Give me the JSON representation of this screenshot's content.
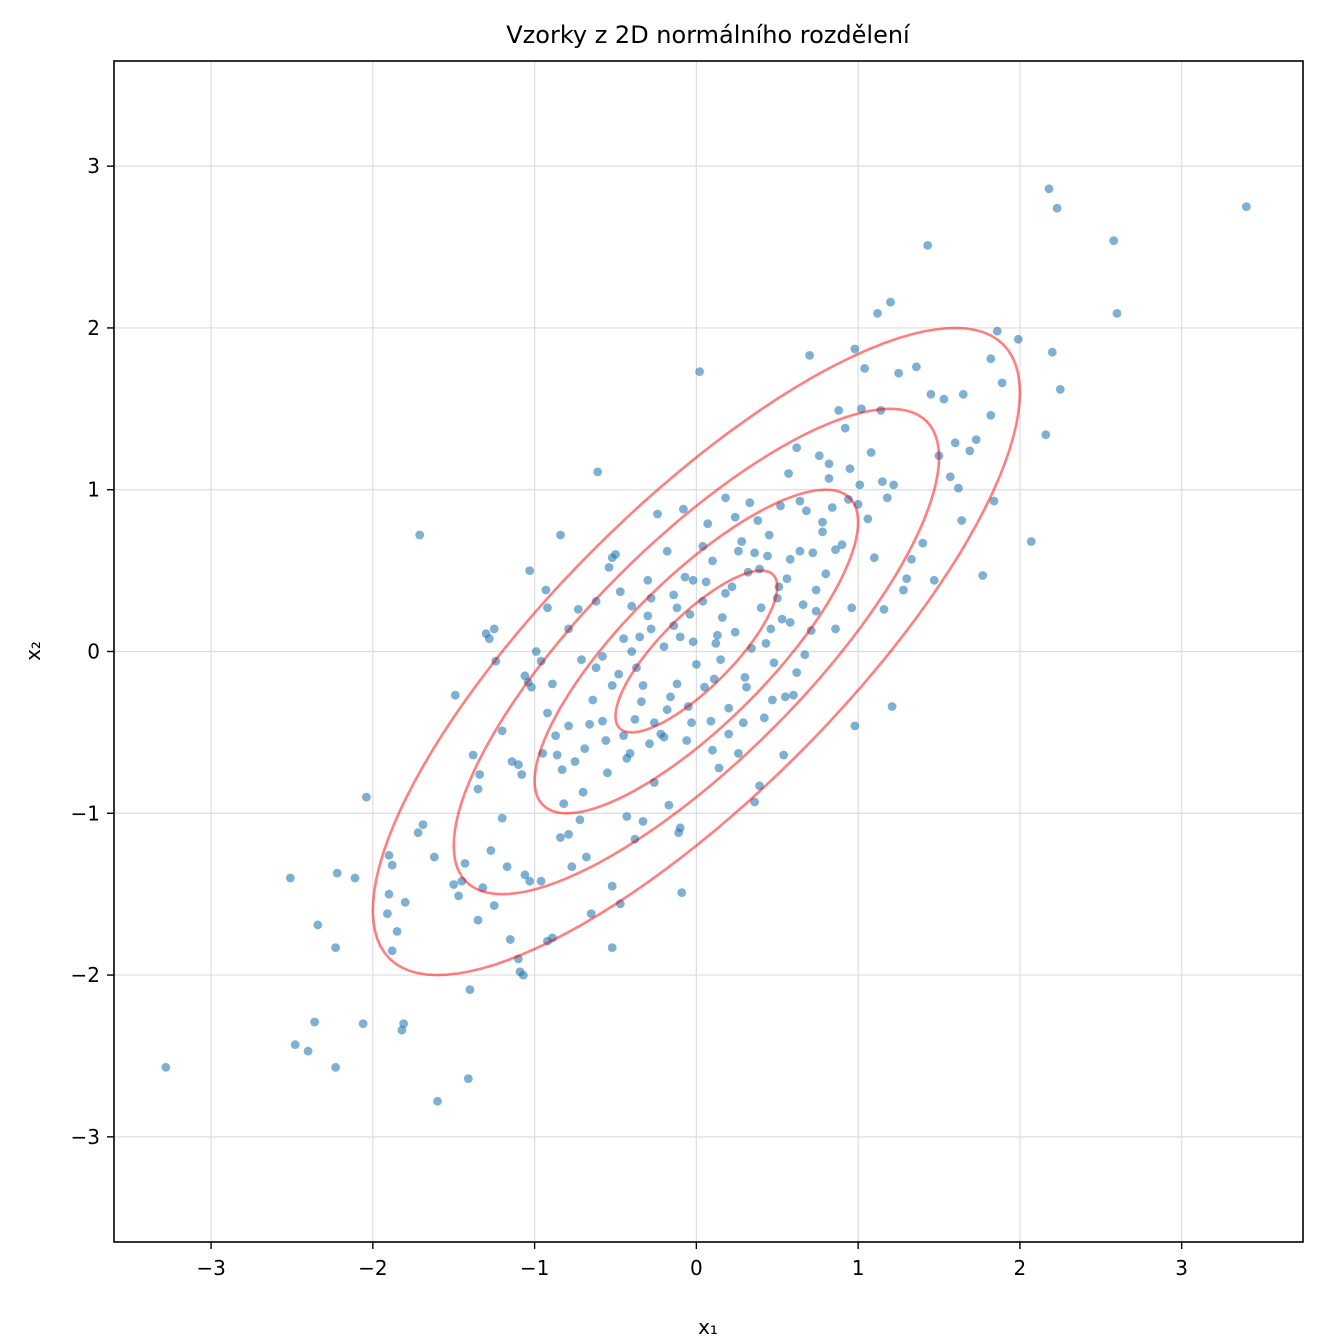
{
  "chart_data": {
    "type": "scatter",
    "title": "Vzorky z 2D normálního rozdělení",
    "xlabel": "x₁",
    "ylabel": "x₂",
    "xlim": [
      -3.6,
      3.75
    ],
    "ylim": [
      -3.65,
      3.65
    ],
    "grid": true,
    "xticks": [
      -3,
      -2,
      -1,
      0,
      1,
      2,
      3
    ],
    "yticks": [
      -3,
      -2,
      -1,
      0,
      1,
      2,
      3
    ],
    "xtick_labels": [
      "−3",
      "−2",
      "−1",
      "0",
      "1",
      "2",
      "3"
    ],
    "ytick_labels": [
      "−3",
      "−2",
      "−1",
      "0",
      "1",
      "2",
      "3"
    ],
    "colors": {
      "points": "#1f77b4",
      "contours": "#ff0000",
      "grid": "#dddddd"
    },
    "contours": {
      "mean": [
        0,
        0
      ],
      "covariance": [
        [
          1.0,
          0.8
        ],
        [
          0.8,
          1.0
        ]
      ],
      "levels_sigma": [
        0.5,
        1.0,
        1.5,
        2.0
      ]
    },
    "points": [
      [
        -3.28,
        -2.57
      ],
      [
        -2.48,
        -2.43
      ],
      [
        -2.4,
        -2.47
      ],
      [
        -2.36,
        -2.29
      ],
      [
        -2.23,
        -2.57
      ],
      [
        -2.06,
        -2.3
      ],
      [
        -1.82,
        -2.34
      ],
      [
        -1.81,
        -2.3
      ],
      [
        -1.6,
        -2.78
      ],
      [
        -1.41,
        -2.64
      ],
      [
        -2.51,
        -1.4
      ],
      [
        -2.34,
        -1.69
      ],
      [
        -2.23,
        -1.83
      ],
      [
        -2.22,
        -1.37
      ],
      [
        -2.11,
        -1.4
      ],
      [
        -1.9,
        -1.26
      ],
      [
        -1.9,
        -1.5
      ],
      [
        -1.88,
        -1.85
      ],
      [
        -1.91,
        -1.62
      ],
      [
        -1.88,
        -1.32
      ],
      [
        -1.85,
        -1.73
      ],
      [
        -1.8,
        -1.55
      ],
      [
        -1.72,
        -1.12
      ],
      [
        -1.69,
        -1.07
      ],
      [
        -1.62,
        -1.27
      ],
      [
        -1.5,
        -1.44
      ],
      [
        -1.47,
        -1.51
      ],
      [
        -1.45,
        -1.42
      ],
      [
        -1.43,
        -1.31
      ],
      [
        -1.4,
        -2.09
      ],
      [
        -1.35,
        -1.66
      ],
      [
        -1.32,
        -1.46
      ],
      [
        -1.27,
        -1.23
      ],
      [
        -1.25,
        -1.57
      ],
      [
        -1.2,
        -1.03
      ],
      [
        -1.17,
        -1.33
      ],
      [
        -1.15,
        -1.78
      ],
      [
        -1.1,
        -1.9
      ],
      [
        -1.09,
        -1.98
      ],
      [
        -1.07,
        -2.0
      ],
      [
        -1.06,
        -1.38
      ],
      [
        -1.03,
        -1.42
      ],
      [
        -0.96,
        -1.42
      ],
      [
        -0.92,
        -1.79
      ],
      [
        -0.89,
        -1.77
      ],
      [
        -0.84,
        -1.15
      ],
      [
        -0.79,
        -1.13
      ],
      [
        -0.77,
        -1.33
      ],
      [
        -0.72,
        -1.04
      ],
      [
        -0.68,
        -1.27
      ],
      [
        -0.65,
        -1.62
      ],
      [
        -0.52,
        -1.83
      ],
      [
        -0.52,
        -1.45
      ],
      [
        -0.47,
        -1.56
      ],
      [
        -0.43,
        -1.02
      ],
      [
        -0.38,
        -1.16
      ],
      [
        -0.33,
        -1.05
      ],
      [
        -0.1,
        -1.09
      ],
      [
        -0.09,
        -1.49
      ],
      [
        -0.11,
        -1.12
      ],
      [
        -2.04,
        -0.9
      ],
      [
        -1.71,
        0.72
      ],
      [
        -1.49,
        -0.27
      ],
      [
        -1.38,
        -0.64
      ],
      [
        -1.35,
        -0.85
      ],
      [
        -1.34,
        -0.76
      ],
      [
        -1.3,
        0.11
      ],
      [
        -1.28,
        0.08
      ],
      [
        -1.25,
        0.14
      ],
      [
        -1.24,
        -0.06
      ],
      [
        -1.2,
        -0.49
      ],
      [
        -1.1,
        -0.7
      ],
      [
        -1.06,
        -0.15
      ],
      [
        -1.04,
        -0.19
      ],
      [
        -1.02,
        -0.22
      ],
      [
        -1.03,
        0.5
      ],
      [
        -0.99,
        0.0
      ],
      [
        -0.96,
        -0.06
      ],
      [
        -0.93,
        0.38
      ],
      [
        -0.92,
        0.27
      ],
      [
        -0.89,
        -0.2
      ],
      [
        -0.86,
        -0.64
      ],
      [
        -0.84,
        0.72
      ],
      [
        -0.82,
        -0.94
      ],
      [
        -0.79,
        -0.46
      ],
      [
        -0.75,
        -0.68
      ],
      [
        -0.73,
        0.26
      ],
      [
        -0.7,
        -0.87
      ],
      [
        -0.66,
        -0.45
      ],
      [
        -0.61,
        1.11
      ],
      [
        -0.58,
        -0.03
      ],
      [
        -0.56,
        -0.55
      ],
      [
        -0.54,
        0.52
      ],
      [
        -0.52,
        0.58
      ],
      [
        -0.5,
        0.6
      ],
      [
        -0.48,
        -0.14
      ],
      [
        -0.45,
        -0.52
      ],
      [
        -0.43,
        -0.66
      ],
      [
        -0.4,
        0.28
      ],
      [
        -0.37,
        -0.1
      ],
      [
        -0.35,
        0.09
      ],
      [
        -0.33,
        -0.21
      ],
      [
        -0.3,
        0.44
      ],
      [
        -0.28,
        0.14
      ],
      [
        -0.26,
        -0.44
      ],
      [
        -0.24,
        0.85
      ],
      [
        -0.22,
        -0.51
      ],
      [
        -0.2,
        0.03
      ],
      [
        -0.18,
        0.62
      ],
      [
        -0.16,
        -0.28
      ],
      [
        -0.14,
        0.35
      ],
      [
        -0.12,
        -0.2
      ],
      [
        -0.1,
        0.09
      ],
      [
        -0.08,
        0.88
      ],
      [
        -0.06,
        -0.55
      ],
      [
        -0.04,
        0.23
      ],
      [
        -0.02,
        0.44
      ],
      [
        0.0,
        -0.08
      ],
      [
        0.02,
        1.73
      ],
      [
        0.04,
        0.31
      ],
      [
        0.05,
        -0.22
      ],
      [
        0.07,
        0.79
      ],
      [
        0.09,
        -0.43
      ],
      [
        0.1,
        0.56
      ],
      [
        0.12,
        0.05
      ],
      [
        0.14,
        -0.72
      ],
      [
        0.16,
        0.21
      ],
      [
        0.18,
        0.95
      ],
      [
        0.2,
        -0.35
      ],
      [
        0.22,
        0.4
      ],
      [
        0.24,
        0.12
      ],
      [
        0.26,
        -0.63
      ],
      [
        0.28,
        0.68
      ],
      [
        0.3,
        -0.16
      ],
      [
        0.32,
        0.49
      ],
      [
        0.34,
        0.02
      ],
      [
        0.36,
        -0.93
      ],
      [
        0.38,
        0.81
      ],
      [
        0.4,
        0.27
      ],
      [
        0.42,
        -0.41
      ],
      [
        0.44,
        0.59
      ],
      [
        0.46,
        0.14
      ],
      [
        0.48,
        -0.07
      ],
      [
        0.5,
        0.33
      ],
      [
        0.52,
        0.9
      ],
      [
        0.54,
        -0.64
      ],
      [
        0.56,
        0.45
      ],
      [
        0.58,
        0.18
      ],
      [
        0.6,
        -0.27
      ],
      [
        0.62,
        1.26
      ],
      [
        0.64,
        0.62
      ],
      [
        0.66,
        0.29
      ],
      [
        0.68,
        0.87
      ],
      [
        0.7,
        1.83
      ],
      [
        0.72,
        0.61
      ],
      [
        0.74,
        0.25
      ],
      [
        0.76,
        1.21
      ],
      [
        0.78,
        0.74
      ],
      [
        0.8,
        0.48
      ],
      [
        0.82,
        1.16
      ],
      [
        0.84,
        0.89
      ],
      [
        0.86,
        0.14
      ],
      [
        0.88,
        1.49
      ],
      [
        0.9,
        0.66
      ],
      [
        0.92,
        1.38
      ],
      [
        0.94,
        0.94
      ],
      [
        0.96,
        0.27
      ],
      [
        0.98,
        1.87
      ],
      [
        1.0,
        0.91
      ],
      [
        1.02,
        1.5
      ],
      [
        1.04,
        1.75
      ],
      [
        1.06,
        0.82
      ],
      [
        1.08,
        1.23
      ],
      [
        1.1,
        0.58
      ],
      [
        1.12,
        2.09
      ],
      [
        1.14,
        1.49
      ],
      [
        1.16,
        0.26
      ],
      [
        1.18,
        0.95
      ],
      [
        1.2,
        2.16
      ],
      [
        1.22,
        1.03
      ],
      [
        1.25,
        1.72
      ],
      [
        1.28,
        0.38
      ],
      [
        1.3,
        0.45
      ],
      [
        1.33,
        0.57
      ],
      [
        1.36,
        1.76
      ],
      [
        1.4,
        0.67
      ],
      [
        1.43,
        2.51
      ],
      [
        1.45,
        1.59
      ],
      [
        1.47,
        0.44
      ],
      [
        1.5,
        1.21
      ],
      [
        1.53,
        1.56
      ],
      [
        1.57,
        1.08
      ],
      [
        1.6,
        1.29
      ],
      [
        1.62,
        1.01
      ],
      [
        1.65,
        1.59
      ],
      [
        1.69,
        1.24
      ],
      [
        1.73,
        1.31
      ],
      [
        1.77,
        0.47
      ],
      [
        1.82,
        1.46
      ],
      [
        1.82,
        1.81
      ],
      [
        1.86,
        1.98
      ],
      [
        1.89,
        1.66
      ],
      [
        1.99,
        1.93
      ],
      [
        2.07,
        0.68
      ],
      [
        2.16,
        1.34
      ],
      [
        2.18,
        2.86
      ],
      [
        2.2,
        1.85
      ],
      [
        2.23,
        2.74
      ],
      [
        2.25,
        1.62
      ],
      [
        2.58,
        2.54
      ],
      [
        2.6,
        2.09
      ],
      [
        3.4,
        2.75
      ],
      [
        1.84,
        0.93
      ],
      [
        1.64,
        0.81
      ],
      [
        1.21,
        -0.34
      ],
      [
        0.98,
        -0.46
      ],
      [
        0.39,
        -0.83
      ],
      [
        0.55,
        -0.28
      ],
      [
        -0.41,
        -0.63
      ],
      [
        -0.64,
        -0.3
      ],
      [
        -0.79,
        0.14
      ],
      [
        -0.92,
        -0.38
      ],
      [
        -1.14,
        -0.68
      ],
      [
        -0.55,
        -0.75
      ],
      [
        -0.29,
        -0.57
      ],
      [
        0.1,
        -0.61
      ],
      [
        -0.17,
        -0.95
      ],
      [
        -0.03,
        -0.44
      ],
      [
        0.13,
        0.1
      ],
      [
        -0.3,
        0.22
      ],
      [
        0.45,
        0.72
      ],
      [
        0.26,
        0.62
      ],
      [
        -0.62,
        0.31
      ],
      [
        -0.18,
        -0.36
      ],
      [
        0.29,
        -0.44
      ],
      [
        0.67,
        -0.02
      ],
      [
        0.51,
        0.4
      ],
      [
        -0.87,
        -0.52
      ],
      [
        -1.08,
        -0.76
      ],
      [
        0.06,
        0.43
      ],
      [
        -0.45,
        0.08
      ],
      [
        0.31,
        -0.22
      ],
      [
        0.86,
        0.63
      ],
      [
        -0.26,
        -0.81
      ],
      [
        0.18,
        0.36
      ],
      [
        -0.05,
        -0.34
      ],
      [
        0.36,
        0.61
      ],
      [
        -0.71,
        -0.05
      ],
      [
        0.58,
        0.57
      ],
      [
        -0.14,
        0.16
      ],
      [
        0.62,
        -0.13
      ],
      [
        -0.34,
        -0.31
      ],
      [
        1.01,
        1.03
      ],
      [
        -0.95,
        -0.63
      ],
      [
        0.43,
        0.05
      ],
      [
        -0.52,
        -0.21
      ],
      [
        0.24,
        0.83
      ],
      [
        -0.02,
        0.06
      ],
      [
        0.74,
        0.38
      ],
      [
        -0.38,
        -0.42
      ],
      [
        0.11,
        -0.17
      ],
      [
        0.82,
        1.07
      ],
      [
        -0.62,
        -0.1
      ],
      [
        0.39,
        0.51
      ],
      [
        -0.12,
        0.27
      ],
      [
        0.53,
        0.2
      ],
      [
        -0.83,
        -0.73
      ],
      [
        0.95,
        1.13
      ],
      [
        -0.28,
        0.33
      ],
      [
        0.2,
        -0.51
      ],
      [
        0.64,
        0.93
      ],
      [
        -0.47,
        0.37
      ],
      [
        0.04,
        0.65
      ],
      [
        1.15,
        1.05
      ],
      [
        -0.58,
        -0.43
      ],
      [
        0.33,
        0.92
      ],
      [
        -0.2,
        -0.53
      ],
      [
        0.71,
        0.13
      ],
      [
        -0.07,
        0.46
      ],
      [
        0.47,
        -0.3
      ],
      [
        -0.4,
        0.0
      ],
      [
        0.78,
        0.8
      ],
      [
        0.15,
        -0.05
      ],
      [
        -0.69,
        -0.6
      ],
      [
        0.57,
        1.1
      ]
    ]
  }
}
